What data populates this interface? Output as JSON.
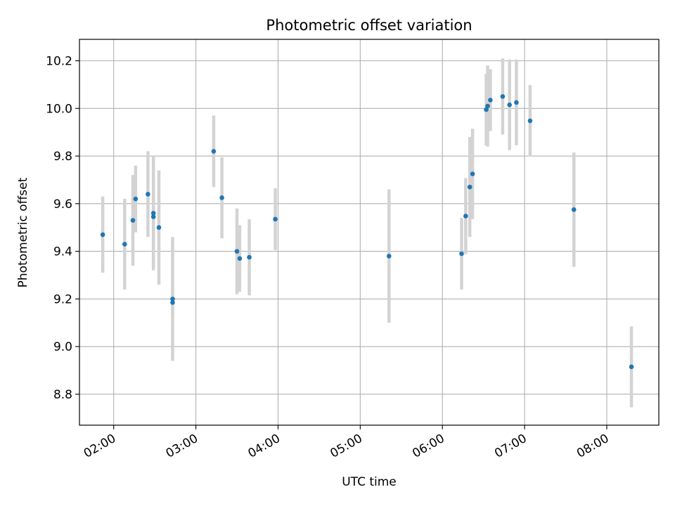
{
  "chart_data": {
    "type": "scatter",
    "title": "Photometric offset variation",
    "xlabel": "UTC time",
    "ylabel": "Photometric offset",
    "x_unit": "UTC time (HH:MM)",
    "xlim": [
      "01:35",
      "08:38"
    ],
    "ylim": [
      8.67,
      10.29
    ],
    "xticks": [
      "02:00",
      "03:00",
      "04:00",
      "05:00",
      "06:00",
      "07:00",
      "08:00"
    ],
    "yticks": [
      8.8,
      9.0,
      9.2,
      9.4,
      9.6,
      9.8,
      10.0,
      10.2
    ],
    "grid": true,
    "point_color": "#1f77b4",
    "errorbar_color": "#d3d3d3",
    "points": [
      {
        "x": "01:52",
        "y": 9.47,
        "err": 0.16
      },
      {
        "x": "02:08",
        "y": 9.43,
        "err": 0.19
      },
      {
        "x": "02:14",
        "y": 9.53,
        "err": 0.19
      },
      {
        "x": "02:16",
        "y": 9.62,
        "err": 0.14
      },
      {
        "x": "02:25",
        "y": 9.64,
        "err": 0.18
      },
      {
        "x": "02:29",
        "y": 9.56,
        "err": 0.24
      },
      {
        "x": "02:29",
        "y": 9.545,
        "err": 0.08
      },
      {
        "x": "02:33",
        "y": 9.5,
        "err": 0.24
      },
      {
        "x": "02:43",
        "y": 9.2,
        "err": 0.26
      },
      {
        "x": "02:43",
        "y": 9.185,
        "err": 0.05
      },
      {
        "x": "03:13",
        "y": 9.82,
        "err": 0.15
      },
      {
        "x": "03:19",
        "y": 9.625,
        "err": 0.17
      },
      {
        "x": "03:30",
        "y": 9.4,
        "err": 0.18
      },
      {
        "x": "03:32",
        "y": 9.37,
        "err": 0.14
      },
      {
        "x": "03:39",
        "y": 9.375,
        "err": 0.16
      },
      {
        "x": "03:58",
        "y": 9.535,
        "err": 0.13
      },
      {
        "x": "05:21",
        "y": 9.38,
        "err": 0.28
      },
      {
        "x": "06:14",
        "y": 9.39,
        "err": 0.15
      },
      {
        "x": "06:17",
        "y": 9.548,
        "err": 0.16
      },
      {
        "x": "06:20",
        "y": 9.67,
        "err": 0.21
      },
      {
        "x": "06:22",
        "y": 9.725,
        "err": 0.19
      },
      {
        "x": "06:32",
        "y": 9.995,
        "err": 0.15
      },
      {
        "x": "06:33",
        "y": 10.01,
        "err": 0.17
      },
      {
        "x": "06:35",
        "y": 10.035,
        "err": 0.13
      },
      {
        "x": "06:44",
        "y": 10.05,
        "err": 0.16
      },
      {
        "x": "06:49",
        "y": 10.015,
        "err": 0.19
      },
      {
        "x": "06:54",
        "y": 10.025,
        "err": 0.18
      },
      {
        "x": "07:04",
        "y": 9.948,
        "err": 0.15
      },
      {
        "x": "07:36",
        "y": 9.575,
        "err": 0.24
      },
      {
        "x": "08:18",
        "y": 8.915,
        "err": 0.17
      }
    ]
  }
}
